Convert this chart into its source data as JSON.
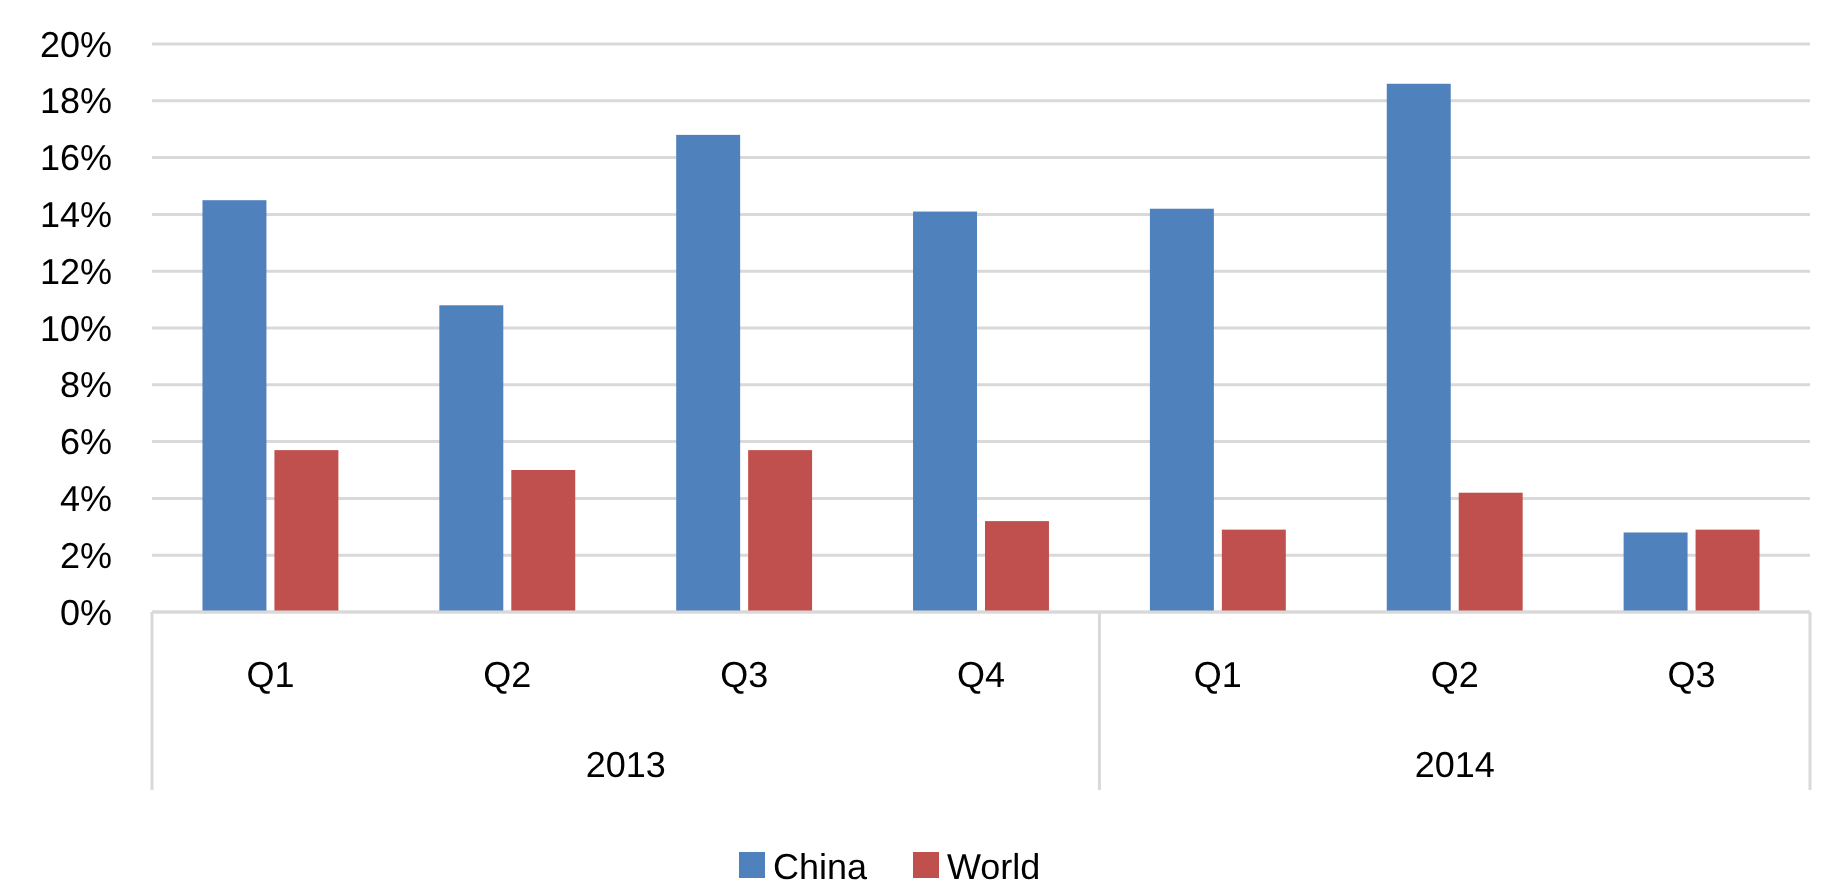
{
  "chart_data": {
    "type": "bar",
    "categories": [
      "Q1",
      "Q2",
      "Q3",
      "Q4",
      "Q1",
      "Q2",
      "Q3"
    ],
    "series": [
      {
        "name": "China",
        "color": "#4f81bd",
        "values": [
          14.5,
          10.8,
          16.8,
          14.1,
          14.2,
          18.6,
          2.8
        ]
      },
      {
        "name": "World",
        "color": "#c0504d",
        "values": [
          5.7,
          5.0,
          5.7,
          3.2,
          2.9,
          4.2,
          2.9
        ]
      }
    ],
    "annotations": [
      "2013",
      "2014"
    ],
    "ylim": [
      0,
      20
    ],
    "yticks": [
      {
        "value": 0,
        "label": "0%"
      },
      {
        "value": 2,
        "label": "2%"
      },
      {
        "value": 4,
        "label": "4%"
      },
      {
        "value": 6,
        "label": "6%"
      },
      {
        "value": 8,
        "label": "8%"
      },
      {
        "value": 10,
        "label": "10%"
      },
      {
        "value": 12,
        "label": "12%"
      },
      {
        "value": 14,
        "label": "14%"
      },
      {
        "value": 16,
        "label": "16%"
      },
      {
        "value": 18,
        "label": "18%"
      },
      {
        "value": 20,
        "label": "20%"
      }
    ],
    "grid": "y",
    "legend": "bottom"
  }
}
